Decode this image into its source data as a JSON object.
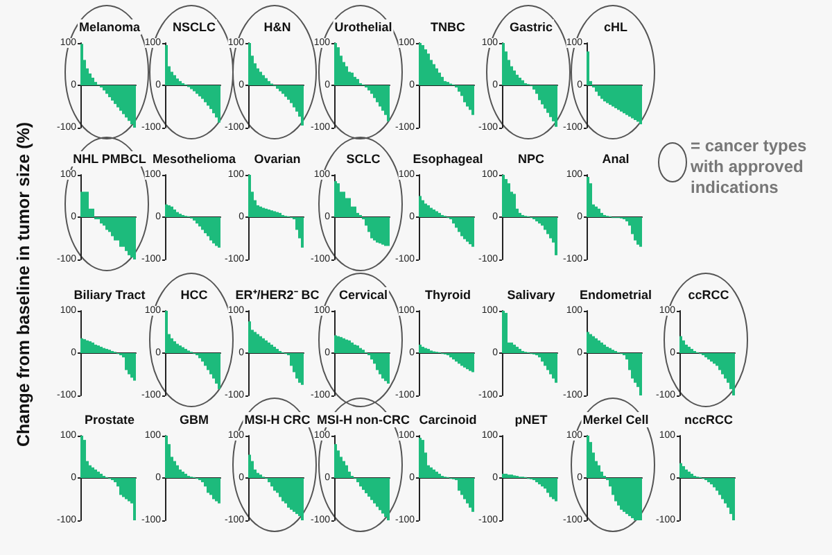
{
  "chart_data": [
    {
      "type": "bar",
      "title": "Melanoma",
      "ylabel": "Change from baseline in tumor size (%)",
      "color": "#1dbb7c",
      "categories": [
        null,
        null,
        null,
        null,
        null,
        null,
        null,
        null,
        null,
        null,
        null,
        null,
        null,
        null,
        null,
        null,
        null,
        null,
        null,
        null
      ],
      "values": [
        98,
        60,
        40,
        28,
        18,
        8,
        2,
        -5,
        -12,
        -20,
        -28,
        -36,
        -44,
        -52,
        -60,
        -68,
        -76,
        -84,
        -92,
        -100
      ],
      "ylim": [
        -100,
        100
      ],
      "yticks": [
        -100,
        0,
        100
      ],
      "tick_labels": "y"
    },
    {
      "type": "bar",
      "title": "NSCLC",
      "color": "#1dbb7c",
      "categories": [
        null,
        null,
        null,
        null,
        null,
        null,
        null,
        null,
        null,
        null,
        null,
        null,
        null,
        null,
        null,
        null,
        null,
        null,
        null,
        null
      ],
      "values": [
        95,
        45,
        32,
        24,
        16,
        10,
        5,
        2,
        -4,
        -9,
        -14,
        -20,
        -26,
        -32,
        -40,
        -48,
        -56,
        -66,
        -76,
        -88
      ],
      "ylim": [
        -100,
        100
      ],
      "yticks": [
        -100,
        0,
        100
      ],
      "tick_labels": "y"
    },
    {
      "type": "bar",
      "title": "H&N",
      "color": "#1dbb7c",
      "categories": [
        null,
        null,
        null,
        null,
        null,
        null,
        null,
        null,
        null,
        null,
        null,
        null,
        null,
        null,
        null,
        null,
        null,
        null,
        null,
        null
      ],
      "values": [
        100,
        70,
        52,
        40,
        32,
        24,
        17,
        10,
        4,
        -2,
        -8,
        -14,
        -20,
        -27,
        -34,
        -42,
        -52,
        -62,
        -74,
        -95
      ],
      "ylim": [
        -100,
        100
      ],
      "yticks": [
        -100,
        0,
        100
      ],
      "tick_labels": "y"
    },
    {
      "type": "bar",
      "title": "Urothelial",
      "color": "#1dbb7c",
      "categories": [
        null,
        null,
        null,
        null,
        null,
        null,
        null,
        null,
        null,
        null,
        null,
        null,
        null,
        null,
        null,
        null,
        null,
        null,
        null,
        null
      ],
      "values": [
        100,
        90,
        70,
        55,
        45,
        32,
        30,
        20,
        15,
        5,
        2,
        -5,
        -12,
        -20,
        -30,
        -40,
        -50,
        -60,
        -70,
        -85
      ],
      "ylim": [
        -100,
        100
      ],
      "yticks": [
        -100,
        0,
        100
      ],
      "tick_labels": "y"
    },
    {
      "type": "bar",
      "title": "TNBC",
      "color": "#1dbb7c",
      "categories": [
        null,
        null,
        null,
        null,
        null,
        null,
        null,
        null,
        null,
        null,
        null,
        null,
        null,
        null,
        null,
        null,
        null,
        null,
        null,
        null
      ],
      "values": [
        100,
        95,
        85,
        75,
        60,
        50,
        40,
        30,
        20,
        10,
        8,
        4,
        2,
        -5,
        -15,
        -25,
        -40,
        -50,
        -58,
        -70
      ],
      "ylim": [
        -100,
        100
      ],
      "yticks": [
        -100,
        0,
        100
      ],
      "tick_labels": "y"
    },
    {
      "type": "bar",
      "title": "Gastric",
      "color": "#1dbb7c",
      "categories": [
        null,
        null,
        null,
        null,
        null,
        null,
        null,
        null,
        null,
        null,
        null,
        null,
        null,
        null,
        null,
        null,
        null,
        null,
        null,
        null
      ],
      "values": [
        100,
        80,
        60,
        45,
        35,
        25,
        18,
        12,
        5,
        3,
        -2,
        -10,
        -20,
        -35,
        -45,
        -55,
        -65,
        -75,
        -85,
        -98
      ],
      "ylim": [
        -100,
        100
      ],
      "yticks": [
        -100,
        0,
        100
      ],
      "tick_labels": "y"
    },
    {
      "type": "bar",
      "title": "cHL",
      "color": "#1dbb7c",
      "categories": [
        null,
        null,
        null,
        null,
        null,
        null,
        null,
        null,
        null,
        null,
        null,
        null,
        null,
        null,
        null,
        null,
        null,
        null,
        null,
        null
      ],
      "values": [
        80,
        10,
        -5,
        -15,
        -25,
        -32,
        -38,
        -42,
        -46,
        -50,
        -54,
        -58,
        -62,
        -66,
        -70,
        -74,
        -78,
        -82,
        -86,
        -92
      ],
      "ylim": [
        -100,
        100
      ],
      "yticks": [
        -100,
        0,
        100
      ],
      "tick_labels": "y"
    },
    {
      "type": "bar",
      "title": "NHL PMBCL",
      "color": "#1dbb7c",
      "categories": [
        null,
        null,
        null,
        null,
        null,
        null,
        null,
        null,
        null,
        null,
        null,
        null,
        null,
        null,
        null,
        null,
        null,
        null,
        null,
        null
      ],
      "values": [
        60,
        60,
        60,
        20,
        20,
        -5,
        -5,
        -15,
        -20,
        -30,
        -35,
        -45,
        -55,
        -55,
        -70,
        -70,
        -80,
        -90,
        -95,
        -100
      ],
      "ylim": [
        -100,
        100
      ],
      "yticks": [
        -100,
        0,
        100
      ],
      "tick_labels": "y"
    },
    {
      "type": "bar",
      "title": "Mesothelioma",
      "color": "#1dbb7c",
      "categories": [
        null,
        null,
        null,
        null,
        null,
        null,
        null,
        null,
        null,
        null,
        null,
        null,
        null,
        null,
        null,
        null,
        null,
        null,
        null,
        null
      ],
      "values": [
        30,
        28,
        25,
        18,
        12,
        8,
        5,
        3,
        2,
        -3,
        -8,
        -15,
        -22,
        -30,
        -38,
        -45,
        -55,
        -62,
        -68,
        -72
      ],
      "ylim": [
        -100,
        100
      ],
      "yticks": [
        -100,
        0,
        100
      ],
      "tick_labels": "y"
    },
    {
      "type": "bar",
      "title": "Ovarian",
      "color": "#1dbb7c",
      "categories": [
        null,
        null,
        null,
        null,
        null,
        null,
        null,
        null,
        null,
        null,
        null,
        null,
        null,
        null,
        null,
        null,
        null,
        null,
        null,
        null
      ],
      "values": [
        100,
        60,
        40,
        28,
        25,
        22,
        20,
        18,
        16,
        14,
        12,
        10,
        5,
        3,
        2,
        -2,
        -5,
        -30,
        -50,
        -72
      ],
      "ylim": [
        -100,
        100
      ],
      "yticks": [
        -100,
        0,
        100
      ],
      "tick_labels": "y"
    },
    {
      "type": "bar",
      "title": "SCLC",
      "color": "#1dbb7c",
      "categories": [
        null,
        null,
        null,
        null,
        null,
        null,
        null,
        null,
        null,
        null,
        null,
        null,
        null,
        null,
        null,
        null,
        null,
        null,
        null,
        null
      ],
      "values": [
        85,
        80,
        60,
        60,
        45,
        45,
        25,
        25,
        10,
        5,
        -5,
        -20,
        -35,
        -50,
        -55,
        -60,
        -62,
        -65,
        -68,
        -68
      ],
      "ylim": [
        -100,
        100
      ],
      "yticks": [
        -100,
        0,
        100
      ],
      "tick_labels": "y"
    },
    {
      "type": "bar",
      "title": "Esophageal",
      "color": "#1dbb7c",
      "categories": [
        null,
        null,
        null,
        null,
        null,
        null,
        null,
        null,
        null,
        null,
        null,
        null,
        null,
        null,
        null,
        null,
        null,
        null,
        null,
        null
      ],
      "values": [
        50,
        40,
        32,
        28,
        22,
        18,
        14,
        10,
        5,
        3,
        -2,
        -5,
        -15,
        -25,
        -35,
        -45,
        -52,
        -58,
        -64,
        -70
      ],
      "ylim": [
        -100,
        100
      ],
      "yticks": [
        -100,
        0,
        100
      ],
      "tick_labels": "y"
    },
    {
      "type": "bar",
      "title": "NPC",
      "color": "#1dbb7c",
      "categories": [
        null,
        null,
        null,
        null,
        null,
        null,
        null,
        null,
        null,
        null,
        null,
        null,
        null,
        null,
        null,
        null,
        null,
        null,
        null,
        null
      ],
      "values": [
        100,
        90,
        80,
        60,
        55,
        20,
        10,
        5,
        3,
        2,
        -2,
        -5,
        -10,
        -15,
        -20,
        -30,
        -40,
        -50,
        -60,
        -90
      ],
      "ylim": [
        -100,
        100
      ],
      "yticks": [
        -100,
        0,
        100
      ],
      "tick_labels": "y"
    },
    {
      "type": "bar",
      "title": "Anal",
      "color": "#1dbb7c",
      "categories": [
        null,
        null,
        null,
        null,
        null,
        null,
        null,
        null,
        null,
        null,
        null,
        null,
        null,
        null,
        null,
        null,
        null,
        null,
        null,
        null
      ],
      "values": [
        95,
        80,
        30,
        25,
        20,
        10,
        5,
        3,
        2,
        -2,
        -2,
        -2,
        -3,
        -5,
        -10,
        -20,
        -40,
        -55,
        -65,
        -70
      ],
      "ylim": [
        -100,
        100
      ],
      "yticks": [
        -100,
        0,
        100
      ],
      "tick_labels": "y"
    },
    {
      "type": "bar",
      "title": "Biliary Tract",
      "color": "#1dbb7c",
      "categories": [
        null,
        null,
        null,
        null,
        null,
        null,
        null,
        null,
        null,
        null,
        null,
        null,
        null,
        null,
        null,
        null,
        null,
        null,
        null,
        null
      ],
      "values": [
        35,
        33,
        30,
        28,
        25,
        20,
        18,
        15,
        12,
        10,
        8,
        5,
        3,
        -2,
        -5,
        -10,
        -40,
        -50,
        -58,
        -65
      ],
      "ylim": [
        -100,
        100
      ],
      "yticks": [
        -100,
        0,
        100
      ],
      "tick_labels": "y"
    },
    {
      "type": "bar",
      "title": "HCC",
      "color": "#1dbb7c",
      "categories": [
        null,
        null,
        null,
        null,
        null,
        null,
        null,
        null,
        null,
        null,
        null,
        null,
        null,
        null,
        null,
        null,
        null,
        null,
        null,
        null
      ],
      "values": [
        100,
        45,
        35,
        28,
        22,
        18,
        14,
        10,
        6,
        3,
        -2,
        -5,
        -12,
        -20,
        -30,
        -40,
        -50,
        -60,
        -72,
        -85
      ],
      "ylim": [
        -100,
        100
      ],
      "yticks": [
        -100,
        0,
        100
      ],
      "tick_labels": "y"
    },
    {
      "type": "bar",
      "title": "ER⁺/HER2⁻ BC",
      "color": "#1dbb7c",
      "categories": [
        null,
        null,
        null,
        null,
        null,
        null,
        null,
        null,
        null,
        null,
        null,
        null,
        null,
        null,
        null,
        null,
        null,
        null,
        null,
        null
      ],
      "values": [
        75,
        55,
        50,
        45,
        40,
        35,
        30,
        25,
        20,
        15,
        10,
        5,
        2,
        -2,
        -5,
        -30,
        -45,
        -60,
        -70,
        -75
      ],
      "ylim": [
        -100,
        100
      ],
      "yticks": [
        -100,
        0,
        100
      ],
      "tick_labels": "y"
    },
    {
      "type": "bar",
      "title": "Cervical",
      "color": "#1dbb7c",
      "categories": [
        null,
        null,
        null,
        null,
        null,
        null,
        null,
        null,
        null,
        null,
        null,
        null,
        null,
        null,
        null,
        null,
        null,
        null,
        null,
        null
      ],
      "values": [
        42,
        40,
        38,
        35,
        32,
        30,
        25,
        20,
        18,
        12,
        8,
        2,
        -5,
        -15,
        -25,
        -40,
        -50,
        -60,
        -66,
        -72
      ],
      "ylim": [
        -100,
        100
      ],
      "yticks": [
        -100,
        0,
        100
      ],
      "tick_labels": "y"
    },
    {
      "type": "bar",
      "title": "Thyroid",
      "color": "#1dbb7c",
      "categories": [
        null,
        null,
        null,
        null,
        null,
        null,
        null,
        null,
        null,
        null,
        null,
        null,
        null,
        null,
        null,
        null,
        null,
        null,
        null,
        null
      ],
      "values": [
        20,
        15,
        12,
        10,
        6,
        4,
        3,
        2,
        -2,
        -3,
        -5,
        -10,
        -15,
        -20,
        -25,
        -30,
        -34,
        -38,
        -42,
        -45
      ],
      "ylim": [
        -100,
        100
      ],
      "yticks": [
        -100,
        0,
        100
      ],
      "tick_labels": "y"
    },
    {
      "type": "bar",
      "title": "Salivary",
      "color": "#1dbb7c",
      "categories": [
        null,
        null,
        null,
        null,
        null,
        null,
        null,
        null,
        null,
        null,
        null,
        null,
        null,
        null,
        null,
        null,
        null,
        null,
        null,
        null
      ],
      "values": [
        100,
        95,
        25,
        25,
        20,
        15,
        10,
        5,
        3,
        2,
        -2,
        -3,
        -5,
        -10,
        -20,
        -30,
        -40,
        -50,
        -60,
        -70
      ],
      "ylim": [
        -100,
        100
      ],
      "yticks": [
        -100,
        0,
        100
      ],
      "tick_labels": "y"
    },
    {
      "type": "bar",
      "title": "Endometrial",
      "color": "#1dbb7c",
      "categories": [
        null,
        null,
        null,
        null,
        null,
        null,
        null,
        null,
        null,
        null,
        null,
        null,
        null,
        null,
        null,
        null,
        null,
        null,
        null,
        null
      ],
      "values": [
        50,
        45,
        40,
        35,
        30,
        25,
        20,
        15,
        12,
        8,
        5,
        2,
        -2,
        -5,
        -15,
        -40,
        -60,
        -70,
        -80,
        -100
      ],
      "ylim": [
        -100,
        100
      ],
      "yticks": [
        -100,
        0,
        100
      ],
      "tick_labels": "y"
    },
    {
      "type": "bar",
      "title": "ccRCC",
      "color": "#1dbb7c",
      "categories": [
        null,
        null,
        null,
        null,
        null,
        null,
        null,
        null,
        null,
        null,
        null,
        null,
        null,
        null,
        null,
        null,
        null,
        null,
        null,
        null
      ],
      "values": [
        40,
        30,
        20,
        15,
        10,
        5,
        2,
        -2,
        -5,
        -10,
        -15,
        -20,
        -25,
        -30,
        -40,
        -50,
        -60,
        -70,
        -85,
        -100
      ],
      "ylim": [
        -100,
        100
      ],
      "yticks": [
        -100,
        0,
        100
      ],
      "tick_labels": "y"
    },
    {
      "type": "bar",
      "title": "Prostate",
      "color": "#1dbb7c",
      "categories": [
        null,
        null,
        null,
        null,
        null,
        null,
        null,
        null,
        null,
        null,
        null,
        null,
        null,
        null,
        null,
        null,
        null,
        null,
        null,
        null
      ],
      "values": [
        100,
        90,
        40,
        30,
        25,
        20,
        15,
        10,
        5,
        2,
        -2,
        -5,
        -10,
        -20,
        -40,
        -45,
        -50,
        -55,
        -60,
        -100
      ],
      "ylim": [
        -100,
        100
      ],
      "yticks": [
        -100,
        0,
        100
      ],
      "tick_labels": "y"
    },
    {
      "type": "bar",
      "title": "GBM",
      "color": "#1dbb7c",
      "categories": [
        null,
        null,
        null,
        null,
        null,
        null,
        null,
        null,
        null,
        null,
        null,
        null,
        null,
        null,
        null,
        null,
        null,
        null,
        null,
        null
      ],
      "values": [
        100,
        80,
        50,
        40,
        30,
        20,
        15,
        10,
        5,
        3,
        2,
        -2,
        -5,
        -10,
        -20,
        -35,
        -40,
        -50,
        -55,
        -60
      ],
      "ylim": [
        -100,
        100
      ],
      "yticks": [
        -100,
        0,
        100
      ],
      "tick_labels": "y"
    },
    {
      "type": "bar",
      "title": "MSI-H CRC",
      "color": "#1dbb7c",
      "categories": [
        null,
        null,
        null,
        null,
        null,
        null,
        null,
        null,
        null,
        null,
        null,
        null,
        null,
        null,
        null,
        null,
        null,
        null,
        null,
        null
      ],
      "values": [
        55,
        40,
        20,
        12,
        8,
        3,
        -2,
        -10,
        -20,
        -30,
        -35,
        -45,
        -55,
        -60,
        -70,
        -75,
        -80,
        -85,
        -90,
        -100
      ],
      "ylim": [
        -100,
        100
      ],
      "yticks": [
        -100,
        0,
        100
      ],
      "tick_labels": "y"
    },
    {
      "type": "bar",
      "title": "MSI-H non-CRC",
      "color": "#1dbb7c",
      "categories": [
        null,
        null,
        null,
        null,
        null,
        null,
        null,
        null,
        null,
        null,
        null,
        null,
        null,
        null,
        null,
        null,
        null,
        null,
        null,
        null
      ],
      "values": [
        80,
        65,
        50,
        40,
        30,
        15,
        5,
        -2,
        -10,
        -20,
        -28,
        -36,
        -44,
        -52,
        -60,
        -68,
        -76,
        -84,
        -92,
        -100
      ],
      "ylim": [
        -100,
        100
      ],
      "yticks": [
        -100,
        0,
        100
      ],
      "tick_labels": "y"
    },
    {
      "type": "bar",
      "title": "Carcinoid",
      "color": "#1dbb7c",
      "categories": [
        null,
        null,
        null,
        null,
        null,
        null,
        null,
        null,
        null,
        null,
        null,
        null,
        null,
        null,
        null,
        null,
        null,
        null,
        null,
        null
      ],
      "values": [
        95,
        90,
        60,
        30,
        25,
        20,
        15,
        10,
        5,
        3,
        2,
        -2,
        -3,
        -5,
        -30,
        -40,
        -50,
        -60,
        -70,
        -80
      ],
      "ylim": [
        -100,
        100
      ],
      "yticks": [
        -100,
        0,
        100
      ],
      "tick_labels": "y"
    },
    {
      "type": "bar",
      "title": "pNET",
      "color": "#1dbb7c",
      "categories": [
        null,
        null,
        null,
        null,
        null,
        null,
        null,
        null,
        null,
        null,
        null,
        null,
        null,
        null,
        null,
        null,
        null,
        null,
        null,
        null
      ],
      "values": [
        10,
        10,
        8,
        8,
        6,
        5,
        3,
        3,
        2,
        -2,
        -3,
        -5,
        -10,
        -15,
        -20,
        -25,
        -35,
        -45,
        -50,
        -55
      ],
      "ylim": [
        -100,
        100
      ],
      "yticks": [
        -100,
        0,
        100
      ],
      "tick_labels": "y"
    },
    {
      "type": "bar",
      "title": "Merkel Cell",
      "color": "#1dbb7c",
      "categories": [
        null,
        null,
        null,
        null,
        null,
        null,
        null,
        null,
        null,
        null,
        null,
        null,
        null,
        null,
        null,
        null,
        null,
        null,
        null,
        null
      ],
      "values": [
        100,
        85,
        60,
        40,
        30,
        15,
        5,
        -5,
        -20,
        -40,
        -55,
        -65,
        -75,
        -80,
        -85,
        -90,
        -95,
        -100,
        -100,
        -100
      ],
      "ylim": [
        -100,
        100
      ],
      "yticks": [
        -100,
        0,
        100
      ],
      "tick_labels": "y"
    },
    {
      "type": "bar",
      "title": "nccRCC",
      "color": "#1dbb7c",
      "categories": [
        null,
        null,
        null,
        null,
        null,
        null,
        null,
        null,
        null,
        null,
        null,
        null,
        null,
        null,
        null,
        null,
        null,
        null,
        null,
        null
      ],
      "values": [
        35,
        28,
        20,
        15,
        10,
        5,
        3,
        2,
        -2,
        -5,
        -10,
        -15,
        -22,
        -30,
        -40,
        -50,
        -60,
        -70,
        -85,
        -100
      ],
      "ylim": [
        -100,
        100
      ],
      "yticks": [
        -100,
        0,
        100
      ],
      "tick_labels": "y"
    },
    {
      "type": "other",
      "annotations": [
        "= cancer types with approved indications"
      ]
    }
  ]
}
